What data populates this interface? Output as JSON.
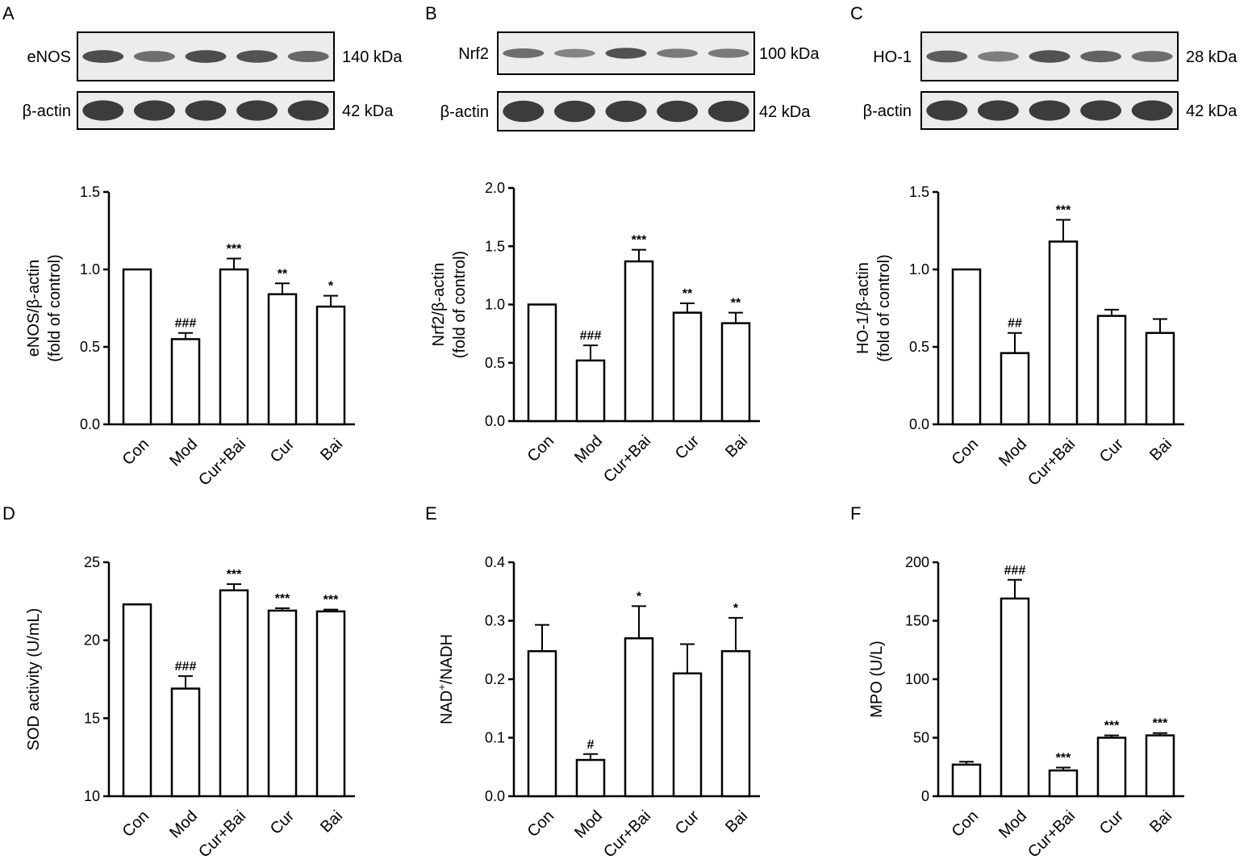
{
  "panels": [
    {
      "letter": "A",
      "blots": [
        {
          "label": "eNOS",
          "kda": "140 kDa",
          "bands": [
            0.85,
            0.55,
            0.85,
            0.8,
            0.6
          ]
        },
        {
          "label": "β-actin",
          "kda": "42 kDa",
          "bands": [
            1,
            1,
            1,
            1,
            1
          ]
        }
      ]
    },
    {
      "letter": "B",
      "blots": [
        {
          "label": "Nrf2",
          "kda": "100 kDa",
          "bands": [
            0.55,
            0.35,
            0.8,
            0.45,
            0.45
          ]
        },
        {
          "label": "β-actin",
          "kda": "42 kDa",
          "bands": [
            1,
            1,
            1,
            1,
            1
          ]
        }
      ]
    },
    {
      "letter": "C",
      "blots": [
        {
          "label": "HO-1",
          "kda": "28 kDa",
          "bands": [
            0.7,
            0.4,
            0.8,
            0.65,
            0.55
          ]
        },
        {
          "label": "β-actin",
          "kda": "42 kDa",
          "bands": [
            1,
            1,
            1,
            1,
            1
          ]
        }
      ]
    },
    {
      "letter": "D"
    },
    {
      "letter": "E"
    },
    {
      "letter": "F"
    }
  ],
  "chart_data": [
    {
      "panel": "A",
      "type": "bar",
      "categories": [
        "Con",
        "Mod",
        "Cur+Bai",
        "Cur",
        "Bai"
      ],
      "values": [
        1.0,
        0.55,
        1.0,
        0.84,
        0.76
      ],
      "errors": [
        0,
        0.04,
        0.07,
        0.07,
        0.07
      ],
      "significance": [
        "",
        "###",
        "***",
        "**",
        "*"
      ],
      "ylabel_lines": [
        "eNOS/β-actin",
        "(fold of control)"
      ],
      "ylim": [
        0,
        1.5
      ],
      "yticks": [
        0.0,
        0.5,
        1.0,
        1.5
      ],
      "ytick_labels": [
        "0.0",
        "0.5",
        "1.0",
        "1.5"
      ]
    },
    {
      "panel": "B",
      "type": "bar",
      "categories": [
        "Con",
        "Mod",
        "Cur+Bai",
        "Cur",
        "Bai"
      ],
      "values": [
        1.0,
        0.52,
        1.37,
        0.93,
        0.84
      ],
      "errors": [
        0,
        0.13,
        0.1,
        0.08,
        0.09
      ],
      "significance": [
        "",
        "###",
        "***",
        "**",
        "**"
      ],
      "ylabel_lines": [
        "Nrf2/β-actin",
        "(fold of control)"
      ],
      "ylim": [
        0,
        2.0
      ],
      "yticks": [
        0.0,
        0.5,
        1.0,
        1.5,
        2.0
      ],
      "ytick_labels": [
        "0.0",
        "0.5",
        "1.0",
        "1.5",
        "2.0"
      ]
    },
    {
      "panel": "C",
      "type": "bar",
      "categories": [
        "Con",
        "Mod",
        "Cur+Bai",
        "Cur",
        "Bai"
      ],
      "values": [
        1.0,
        0.46,
        1.18,
        0.7,
        0.59
      ],
      "errors": [
        0,
        0.13,
        0.14,
        0.04,
        0.09
      ],
      "significance": [
        "",
        "##",
        "***",
        "",
        ""
      ],
      "ylabel_lines": [
        "HO-1/β-actin",
        "(fold of control)"
      ],
      "ylim": [
        0,
        1.5
      ],
      "yticks": [
        0.0,
        0.5,
        1.0,
        1.5
      ],
      "ytick_labels": [
        "0.0",
        "0.5",
        "1.0",
        "1.5"
      ]
    },
    {
      "panel": "D",
      "type": "bar",
      "categories": [
        "Con",
        "Mod",
        "Cur+Bai",
        "Cur",
        "Bai"
      ],
      "values": [
        22.3,
        16.9,
        23.2,
        21.9,
        21.85
      ],
      "errors": [
        0,
        0.8,
        0.4,
        0.15,
        0.12
      ],
      "significance": [
        "",
        "###",
        "***",
        "***",
        "***"
      ],
      "ylabel_lines": [
        "SOD activity (U/mL)"
      ],
      "ylim": [
        10,
        25
      ],
      "yticks": [
        10,
        15,
        20,
        25
      ],
      "ytick_labels": [
        "10",
        "15",
        "20",
        "25"
      ]
    },
    {
      "panel": "E",
      "type": "bar",
      "categories": [
        "Con",
        "Mod",
        "Cur+Bai",
        "Cur",
        "Bai"
      ],
      "values": [
        0.248,
        0.062,
        0.27,
        0.21,
        0.248
      ],
      "errors": [
        0.045,
        0.01,
        0.055,
        0.05,
        0.057
      ],
      "significance": [
        "",
        "#",
        "*",
        "",
        "*"
      ],
      "ylabel_lines": [
        "NAD",
        "+",
        "/NADH"
      ],
      "ylim": [
        0,
        0.4
      ],
      "yticks": [
        0.0,
        0.1,
        0.2,
        0.3,
        0.4
      ],
      "ytick_labels": [
        "0.0",
        "0.1",
        "0.2",
        "0.3",
        "0.4"
      ]
    },
    {
      "panel": "F",
      "type": "bar",
      "categories": [
        "Con",
        "Mod",
        "Cur+Bai",
        "Cur",
        "Bai"
      ],
      "values": [
        27,
        169,
        22,
        50,
        52
      ],
      "errors": [
        2.5,
        16,
        2.5,
        2,
        2
      ],
      "significance": [
        "",
        "###",
        "***",
        "***",
        "***"
      ],
      "ylabel_lines": [
        "MPO (U/L)"
      ],
      "ylim": [
        0,
        200
      ],
      "yticks": [
        0,
        50,
        100,
        150,
        200
      ],
      "ytick_labels": [
        "0",
        "50",
        "100",
        "150",
        "200"
      ]
    }
  ]
}
